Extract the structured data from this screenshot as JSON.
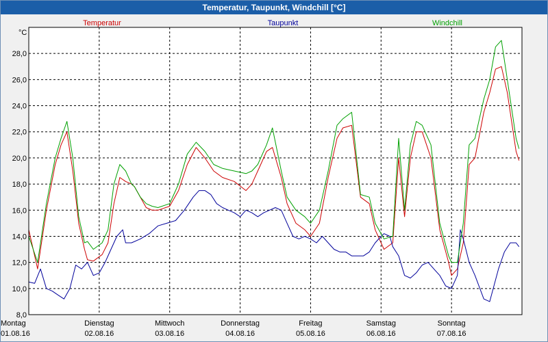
{
  "window": {
    "title": "Temperatur, Taupunkt, Windchill [°C]"
  },
  "chart_data": {
    "type": "line",
    "title": "Temperatur, Taupunkt, Windchill [°C]",
    "ylabel": "°C",
    "xlabel": "",
    "ylim": [
      8,
      30
    ],
    "xlim": [
      0,
      168
    ],
    "grid": true,
    "y_ticks": [
      "8,0",
      "10,0",
      "12,0",
      "14,0",
      "16,0",
      "18,0",
      "20,0",
      "22,0",
      "24,0",
      "26,0",
      "28,0"
    ],
    "x_ticks": [
      {
        "day": "Montag",
        "date": "01.08.16",
        "hour": 0
      },
      {
        "day": "Dienstag",
        "date": "02.08.16",
        "hour": 24
      },
      {
        "day": "Mittwoch",
        "date": "03.08.16",
        "hour": 48
      },
      {
        "day": "Donnerstag",
        "date": "04.08.16",
        "hour": 72
      },
      {
        "day": "Freitag",
        "date": "05.08.16",
        "hour": 96
      },
      {
        "day": "Samstag",
        "date": "06.08.16",
        "hour": 120
      },
      {
        "day": "Sonntag",
        "date": "07.08.16",
        "hour": 144
      }
    ],
    "series": [
      {
        "name": "Temperatur",
        "color": "#cc0000",
        "x": [
          0,
          3,
          6,
          9,
          11,
          13,
          15,
          17,
          19,
          20,
          22,
          25,
          27,
          29,
          31,
          33,
          35,
          36,
          38,
          40,
          42,
          44,
          48,
          51,
          54,
          57,
          60,
          63,
          66,
          70,
          74,
          76,
          78,
          79,
          81,
          83,
          86,
          88,
          91,
          94,
          96,
          99,
          102,
          105,
          107,
          110,
          113,
          116,
          118,
          121,
          124,
          126,
          128,
          130,
          132,
          134,
          137,
          140,
          143,
          144,
          146,
          148,
          150,
          152,
          155,
          157,
          159,
          161,
          163,
          166,
          167
        ],
        "values": [
          14.5,
          11.5,
          16.0,
          19.5,
          21.0,
          22.0,
          19.0,
          15.0,
          13.0,
          12.2,
          12.1,
          12.6,
          13.5,
          16.5,
          18.5,
          18.2,
          18.0,
          17.8,
          17.0,
          16.2,
          16.0,
          16.0,
          16.3,
          17.5,
          19.5,
          20.8,
          20.0,
          19.0,
          18.5,
          18.2,
          17.5,
          18.0,
          19.0,
          19.5,
          20.5,
          20.8,
          18.5,
          16.5,
          15.0,
          14.5,
          14.0,
          15.0,
          18.5,
          21.5,
          22.3,
          22.5,
          17.0,
          16.5,
          14.5,
          13.0,
          13.5,
          20.0,
          15.5,
          20.0,
          22.0,
          22.0,
          20.0,
          14.5,
          12.0,
          11.0,
          11.5,
          13.5,
          19.5,
          20.0,
          23.5,
          25.0,
          26.8,
          27.0,
          25.0,
          20.5,
          19.8
        ]
      },
      {
        "name": "Taupunkt",
        "color": "#00009a",
        "x": [
          0,
          2,
          4,
          6,
          8,
          10,
          12,
          14,
          16,
          18,
          20,
          22,
          24,
          26,
          28,
          30,
          32,
          33,
          35,
          38,
          41,
          44,
          47,
          50,
          53,
          56,
          58,
          60,
          62,
          64,
          66,
          68,
          70,
          72,
          74,
          76,
          78,
          80,
          82,
          84,
          86,
          88,
          90,
          92,
          94,
          96,
          98,
          100,
          102,
          104,
          106,
          108,
          110,
          112,
          114,
          116,
          118,
          120,
          121,
          123,
          124,
          126,
          128,
          130,
          132,
          134,
          136,
          138,
          140,
          142,
          144,
          146,
          147,
          148,
          150,
          152,
          155,
          157,
          160,
          162,
          164,
          166,
          167
        ],
        "values": [
          10.5,
          10.4,
          11.5,
          10.0,
          9.8,
          9.5,
          9.2,
          10.0,
          11.8,
          11.5,
          12.0,
          11.0,
          11.2,
          12.0,
          13.0,
          14.0,
          14.5,
          13.5,
          13.5,
          13.8,
          14.2,
          14.8,
          15.0,
          15.2,
          16.0,
          17.0,
          17.5,
          17.5,
          17.2,
          16.5,
          16.2,
          16.0,
          15.8,
          15.5,
          16.0,
          15.8,
          15.5,
          15.8,
          16.0,
          16.2,
          16.0,
          15.0,
          14.0,
          13.8,
          14.0,
          13.8,
          13.5,
          14.0,
          13.5,
          13.0,
          12.8,
          12.8,
          12.5,
          12.5,
          12.5,
          12.8,
          13.5,
          14.0,
          14.2,
          14.0,
          13.2,
          12.5,
          11.0,
          10.8,
          11.2,
          11.8,
          12.0,
          11.5,
          11.0,
          10.2,
          10.0,
          11.0,
          14.5,
          13.8,
          12.0,
          11.0,
          9.2,
          9.0,
          11.5,
          12.8,
          13.5,
          13.5,
          13.2
        ]
      },
      {
        "name": "Windchill",
        "color": "#00a000",
        "x": [
          0,
          3,
          6,
          9,
          11,
          13,
          15,
          17,
          19,
          20,
          22,
          25,
          27,
          29,
          31,
          33,
          35,
          36,
          38,
          40,
          42,
          44,
          48,
          51,
          54,
          57,
          60,
          63,
          66,
          70,
          74,
          76,
          78,
          79,
          81,
          83,
          86,
          88,
          91,
          94,
          96,
          99,
          102,
          105,
          107,
          110,
          113,
          116,
          118,
          121,
          124,
          126,
          128,
          130,
          132,
          134,
          137,
          140,
          143,
          144,
          146,
          148,
          150,
          152,
          155,
          157,
          159,
          161,
          163,
          166,
          167
        ],
        "values": [
          14.0,
          12.0,
          16.5,
          20.0,
          21.5,
          22.8,
          20.0,
          15.5,
          13.5,
          13.6,
          13.0,
          13.5,
          14.5,
          18.0,
          19.5,
          19.0,
          18.0,
          17.8,
          17.0,
          16.5,
          16.3,
          16.2,
          16.5,
          18.0,
          20.3,
          21.2,
          20.5,
          19.5,
          19.2,
          19.0,
          18.8,
          19.0,
          19.5,
          20.0,
          21.0,
          22.3,
          19.0,
          17.0,
          16.0,
          15.5,
          15.0,
          16.0,
          19.0,
          22.5,
          23.0,
          23.5,
          17.2,
          17.0,
          15.0,
          13.8,
          14.0,
          21.5,
          16.0,
          21.0,
          22.8,
          22.5,
          21.0,
          15.0,
          12.5,
          12.0,
          12.0,
          15.0,
          21.0,
          21.5,
          24.5,
          26.0,
          28.5,
          29.0,
          26.0,
          21.5,
          20.7
        ]
      }
    ]
  }
}
